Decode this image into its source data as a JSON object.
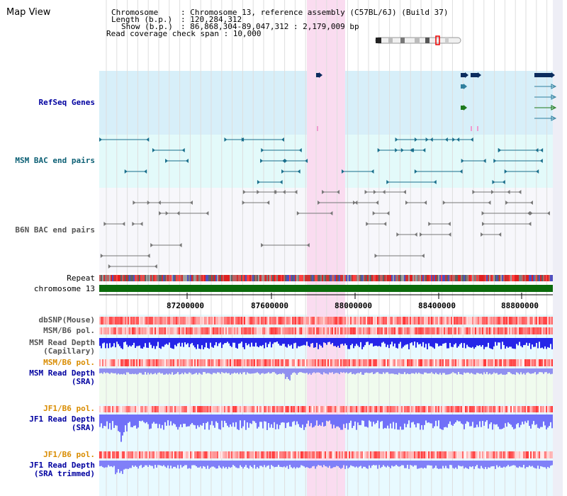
{
  "app": {
    "title": "Map View"
  },
  "info": {
    "chromosome_key": "Chromosome",
    "chromosome_val": ": Chromosome 13, reference assembly (C57BL/6J) (Build 37)",
    "length_key": "Length (b.p.)",
    "length_val": ": 120,284,312",
    "show_key": "Show (b.p.)",
    "show_val": ": 86,868,304-89,047,312 : 2,179,009 bp",
    "coverage": "Read coverage check span : 10,000"
  },
  "tracks": {
    "refseq": "RefSeq Genes",
    "msm_bac": "MSM BAC end pairs",
    "b6n_bac": "B6N BAC end pairs",
    "repeat": "Repeat",
    "chromosome": "chromosome 13",
    "dbsnp": "dbSNP(Mouse)",
    "msm_pol1": "MSM/B6 pol.",
    "msm_depth_cap_1": "MSM Read Depth",
    "msm_depth_cap_2": "(Capillary)",
    "msm_pol2": "MSM/B6 pol.",
    "msm_depth_sra_1": "MSM Read Depth",
    "msm_depth_sra_2": "(SRA)",
    "jf1_pol1": "JF1/B6 pol.",
    "jf1_depth_sra_1": "JF1 Read Depth",
    "jf1_depth_sra_2": "(SRA)",
    "jf1_pol2": "JF1/B6 pol.",
    "jf1_depth_trim_1": "JF1 Read Depth",
    "jf1_depth_trim_2": "(SRA trimmed)"
  },
  "axis": {
    "ticks": [
      "87200000",
      "87600000",
      "88000000",
      "88400000",
      "88800000"
    ]
  },
  "colors": {
    "highlight": "#fadcf0",
    "refseq_bg": "#d7eff9",
    "msm_bg": "#e3fafa",
    "gene_dark": "#0b2c5e",
    "gene_teal": "#2f7f9e",
    "gene_green": "#1c7a1c",
    "chrom_green": "#0b6b0b",
    "depth_blue": "#3a3aff",
    "depth_light": "#8f8fff",
    "label_blue": "#0000a0",
    "label_orange": "#d98c00",
    "label_teal": "#0b5f74",
    "label_gray": "#555555"
  }
}
